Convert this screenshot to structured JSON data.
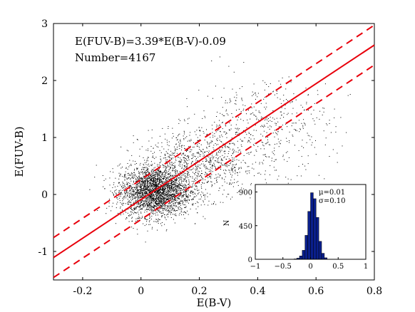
{
  "chart_data": [
    {
      "type": "scatter",
      "xlabel": "E(B-V)",
      "ylabel": "E(FUV-B)",
      "xlim": [
        -0.3,
        0.8
      ],
      "ylim": [
        -1.5,
        3.0
      ],
      "x_ticks": [
        -0.2,
        0,
        0.2,
        0.4,
        0.6,
        0.8
      ],
      "x_tick_labels": [
        "-0.2",
        "0",
        "0.2",
        "0.4",
        "0.6",
        "0.8"
      ],
      "y_ticks": [
        -1,
        0,
        1,
        2,
        3
      ],
      "y_tick_labels": [
        "-1",
        "0",
        "1",
        "2",
        "3"
      ],
      "annotations": [
        "E(FUV-B)=3.39*E(B-V)-0.09",
        "Number=4167"
      ],
      "fit": {
        "slope": 3.39,
        "intercept": -0.09,
        "band_offset": 0.35,
        "color": "#e8000b"
      },
      "point_color": "#000000",
      "points": {
        "count": 4167,
        "clusters": [
          {
            "x": 0.05,
            "y": 0.05,
            "sx": 0.06,
            "sy": 0.22,
            "n": 2800
          },
          {
            "x": 0.2,
            "y": 0.55,
            "sx": 0.1,
            "sy": 0.3,
            "n": 900
          },
          {
            "x": 0.42,
            "y": 1.2,
            "sx": 0.12,
            "sy": 0.4,
            "n": 467
          }
        ]
      }
    },
    {
      "type": "bar",
      "ylabel": "N",
      "xlim": [
        -1,
        1
      ],
      "ylim": [
        0,
        1000
      ],
      "x_ticks": [
        -1,
        -0.5,
        0,
        0.5,
        1
      ],
      "x_tick_labels": [
        "−1",
        "−0.5",
        "0",
        "0.5",
        "1"
      ],
      "y_ticks": [
        0,
        450,
        900
      ],
      "y_tick_labels": [
        "0",
        "450",
        "900"
      ],
      "legend_text": [
        "μ=0.01",
        "σ=0.10"
      ],
      "bar_color": "#0a1f8c",
      "bins": [
        -0.3,
        -0.25,
        -0.2,
        -0.15,
        -0.1,
        -0.05,
        0.0,
        0.05,
        0.1,
        0.15,
        0.2,
        0.25
      ],
      "bin_width": 0.05,
      "counts": [
        5,
        15,
        45,
        120,
        320,
        640,
        890,
        810,
        560,
        240,
        80,
        20
      ]
    }
  ]
}
